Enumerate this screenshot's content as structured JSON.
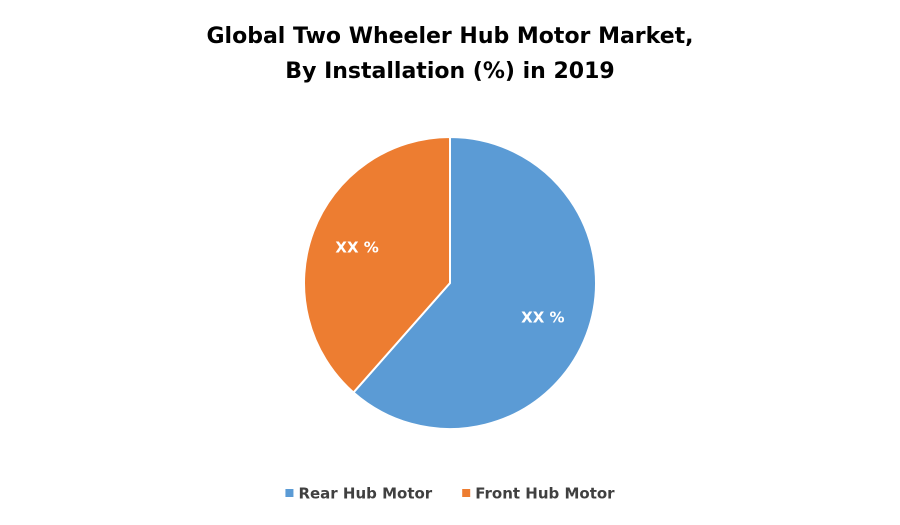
{
  "chart_data": {
    "type": "pie",
    "title": [
      "Global Two Wheeler Hub Motor Market,",
      "By Installation (%) in 2019"
    ],
    "categories": [
      "Rear Hub Motor",
      "Front Hub Motor"
    ],
    "values": [
      61.5,
      38.5
    ],
    "value_labels": [
      "XX %",
      "XX %"
    ],
    "colors": [
      "#5b9bd5",
      "#ed7d31"
    ],
    "legend": "bottom"
  }
}
